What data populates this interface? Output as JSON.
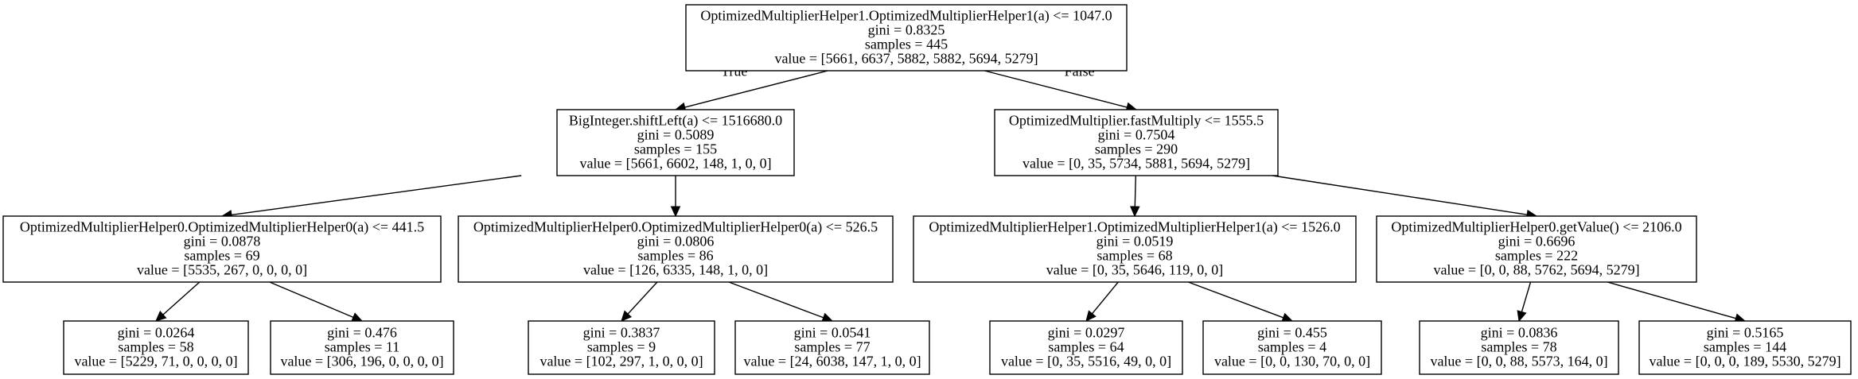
{
  "tree": {
    "nodes": [
      {
        "id": "n0",
        "lines": [
          "OptimizedMultiplierHelper1.OptimizedMultiplierHelper1(a) <= 1047.0",
          "gini = 0.8325",
          "samples = 445",
          "value = [5661, 6637, 5882, 5882, 5694, 5279]"
        ]
      },
      {
        "id": "n1",
        "lines": [
          "BigInteger.shiftLeft(a) <= 1516680.0",
          "gini = 0.5089",
          "samples = 155",
          "value = [5661, 6602, 148, 1, 0, 0]"
        ]
      },
      {
        "id": "n2",
        "lines": [
          "OptimizedMultiplier.fastMultiply <= 1555.5",
          "gini = 0.7504",
          "samples = 290",
          "value = [0, 35, 5734, 5881, 5694, 5279]"
        ]
      },
      {
        "id": "n3",
        "lines": [
          "OptimizedMultiplierHelper0.OptimizedMultiplierHelper0(a) <= 441.5",
          "gini = 0.0878",
          "samples = 69",
          "value = [5535, 267, 0, 0, 0, 0]"
        ]
      },
      {
        "id": "n4",
        "lines": [
          "OptimizedMultiplierHelper0.OptimizedMultiplierHelper0(a) <= 526.5",
          "gini = 0.0806",
          "samples = 86",
          "value = [126, 6335, 148, 1, 0, 0]"
        ]
      },
      {
        "id": "n5",
        "lines": [
          "OptimizedMultiplierHelper1.OptimizedMultiplierHelper1(a) <= 1526.0",
          "gini = 0.0519",
          "samples = 68",
          "value = [0, 35, 5646, 119, 0, 0]"
        ]
      },
      {
        "id": "n6",
        "lines": [
          "OptimizedMultiplierHelper0.getValue() <= 2106.0",
          "gini = 0.6696",
          "samples = 222",
          "value = [0, 0, 88, 5762, 5694, 5279]"
        ]
      },
      {
        "id": "n7",
        "lines": [
          "gini = 0.0264",
          "samples = 58",
          "value = [5229, 71, 0, 0, 0, 0]"
        ]
      },
      {
        "id": "n8",
        "lines": [
          "gini = 0.476",
          "samples = 11",
          "value = [306, 196, 0, 0, 0, 0]"
        ]
      },
      {
        "id": "n9",
        "lines": [
          "gini = 0.3837",
          "samples = 9",
          "value = [102, 297, 1, 0, 0, 0]"
        ]
      },
      {
        "id": "n10",
        "lines": [
          "gini = 0.0541",
          "samples = 77",
          "value = [24, 6038, 147, 1, 0, 0]"
        ]
      },
      {
        "id": "n11",
        "lines": [
          "gini = 0.0297",
          "samples = 64",
          "value = [0, 35, 5516, 49, 0, 0]"
        ]
      },
      {
        "id": "n12",
        "lines": [
          "gini = 0.455",
          "samples = 4",
          "value = [0, 0, 130, 70, 0, 0]"
        ]
      },
      {
        "id": "n13",
        "lines": [
          "gini = 0.0836",
          "samples = 78",
          "value = [0, 0, 88, 5573, 164, 0]"
        ]
      },
      {
        "id": "n14",
        "lines": [
          "gini = 0.5165",
          "samples = 144",
          "value = [0, 0, 0, 189, 5530, 5279]"
        ]
      }
    ],
    "edges": [
      {
        "from": "n0",
        "to": "n1",
        "label": "True"
      },
      {
        "from": "n0",
        "to": "n2",
        "label": "False"
      },
      {
        "from": "n1",
        "to": "n3",
        "label": ""
      },
      {
        "from": "n1",
        "to": "n4",
        "label": ""
      },
      {
        "from": "n2",
        "to": "n5",
        "label": ""
      },
      {
        "from": "n2",
        "to": "n6",
        "label": ""
      },
      {
        "from": "n3",
        "to": "n7",
        "label": ""
      },
      {
        "from": "n3",
        "to": "n8",
        "label": ""
      },
      {
        "from": "n4",
        "to": "n9",
        "label": ""
      },
      {
        "from": "n4",
        "to": "n10",
        "label": ""
      },
      {
        "from": "n5",
        "to": "n11",
        "label": ""
      },
      {
        "from": "n5",
        "to": "n12",
        "label": ""
      },
      {
        "from": "n6",
        "to": "n13",
        "label": ""
      },
      {
        "from": "n6",
        "to": "n14",
        "label": ""
      }
    ]
  }
}
